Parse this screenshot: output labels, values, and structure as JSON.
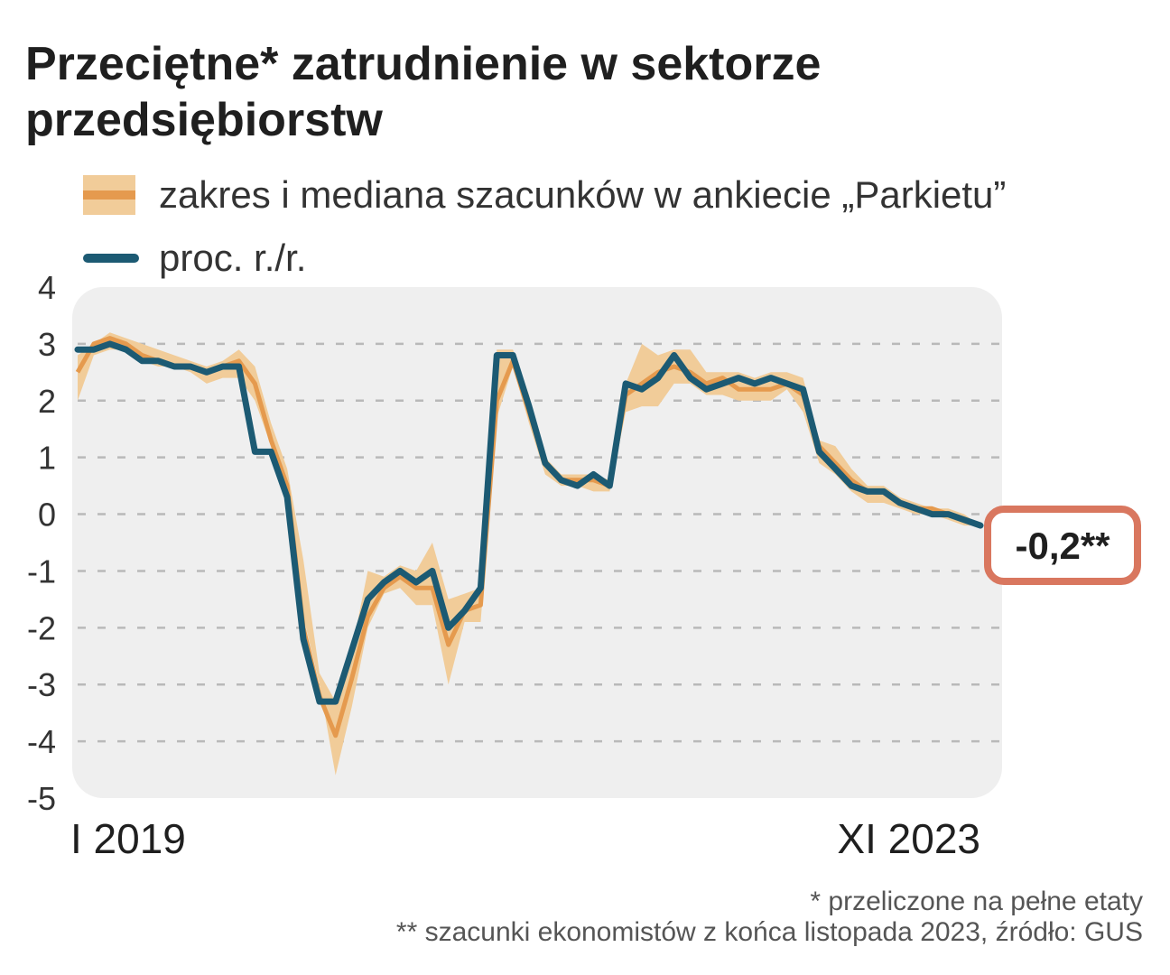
{
  "title": "Przeciętne* zatrudnienie w sektorze przedsiębiorstw",
  "legend": {
    "band_label": "zakres i mediana szacunków w ankiecie „Parkietu”",
    "line_label": "proc. r./r."
  },
  "footnotes": {
    "note1": "* przeliczone na pełne etaty",
    "note2": "** szacunki ekonomistów z końca listopada 2023, źródło: GUS"
  },
  "colors": {
    "line": "#1c5a73",
    "band": "#f1cc99",
    "median": "#e59a4e",
    "callout_border": "#d9775f",
    "plot_bg": "#efefef"
  },
  "chart_data": {
    "type": "line",
    "title": "Przeciętne* zatrudnienie w sektorze przedsiębiorstw",
    "xlabel": "",
    "ylabel": "",
    "ylim": [
      -5,
      4
    ],
    "yticks": [
      "4",
      "3",
      "2",
      "1",
      "0",
      "-1",
      "-2",
      "-3",
      "-4",
      "-5"
    ],
    "x_start_label": "I 2019",
    "x_end_label": "XI 2023",
    "grid": true,
    "callout": "-0,2**",
    "series": [
      {
        "name": "proc. r./r.",
        "values": [
          2.9,
          2.9,
          3.0,
          2.9,
          2.7,
          2.7,
          2.6,
          2.6,
          2.5,
          2.6,
          2.6,
          1.1,
          1.1,
          0.3,
          -2.2,
          -3.3,
          -3.3,
          -2.4,
          -1.5,
          -1.2,
          -1.0,
          -1.2,
          -1.0,
          -2.0,
          -1.7,
          -1.3,
          2.8,
          2.8,
          1.9,
          0.9,
          0.6,
          0.5,
          0.7,
          0.5,
          2.3,
          2.2,
          2.4,
          2.8,
          2.4,
          2.2,
          2.3,
          2.4,
          2.3,
          2.4,
          2.3,
          2.2,
          1.1,
          0.8,
          0.5,
          0.4,
          0.4,
          0.2,
          0.1,
          0.0,
          0.0,
          -0.1,
          -0.2
        ]
      },
      {
        "name": "zakres i mediana szacunków w ankiecie „Parkietu”",
        "kind": "band",
        "low": [
          2.0,
          2.8,
          2.9,
          2.9,
          2.7,
          2.6,
          2.6,
          2.5,
          2.3,
          2.4,
          2.4,
          2.0,
          1.2,
          0.2,
          -1.8,
          -3.0,
          -4.6,
          -3.4,
          -2.0,
          -1.4,
          -1.3,
          -1.6,
          -1.6,
          -3.0,
          -1.9,
          -1.9,
          1.7,
          2.6,
          1.6,
          0.7,
          0.5,
          0.5,
          0.4,
          0.4,
          1.8,
          1.9,
          1.9,
          2.3,
          2.3,
          2.1,
          2.1,
          2.0,
          2.0,
          2.0,
          2.2,
          1.8,
          0.9,
          0.7,
          0.4,
          0.2,
          0.2,
          0.1,
          0.0,
          0.0,
          -0.1,
          -0.2,
          -0.2
        ],
        "median": [
          2.5,
          3.0,
          3.1,
          3.0,
          2.8,
          2.7,
          2.6,
          2.6,
          2.5,
          2.6,
          2.7,
          2.3,
          1.3,
          0.5,
          -2.0,
          -3.2,
          -3.9,
          -2.9,
          -1.8,
          -1.3,
          -1.1,
          -1.3,
          -1.3,
          -2.3,
          -1.7,
          -1.6,
          2.0,
          2.7,
          1.8,
          0.9,
          0.6,
          0.6,
          0.6,
          0.5,
          2.1,
          2.3,
          2.5,
          2.6,
          2.5,
          2.3,
          2.4,
          2.2,
          2.2,
          2.2,
          2.3,
          2.1,
          1.2,
          0.9,
          0.6,
          0.4,
          0.4,
          0.2,
          0.1,
          0.1,
          0.0,
          -0.1,
          -0.2
        ],
        "high": [
          2.8,
          3.0,
          3.2,
          3.1,
          3.0,
          2.9,
          2.8,
          2.7,
          2.6,
          2.7,
          2.9,
          2.6,
          1.6,
          0.8,
          -0.8,
          -2.8,
          -3.3,
          -2.4,
          -1.0,
          -1.1,
          -0.9,
          -1.0,
          -0.5,
          -1.5,
          -1.4,
          -1.3,
          2.9,
          2.9,
          2.1,
          1.0,
          0.7,
          0.7,
          0.7,
          0.6,
          2.3,
          3.0,
          2.8,
          2.9,
          2.9,
          2.5,
          2.5,
          2.5,
          2.4,
          2.5,
          2.5,
          2.4,
          1.3,
          1.2,
          0.8,
          0.5,
          0.5,
          0.3,
          0.2,
          0.1,
          0.1,
          0.0,
          -0.2
        ]
      }
    ]
  }
}
